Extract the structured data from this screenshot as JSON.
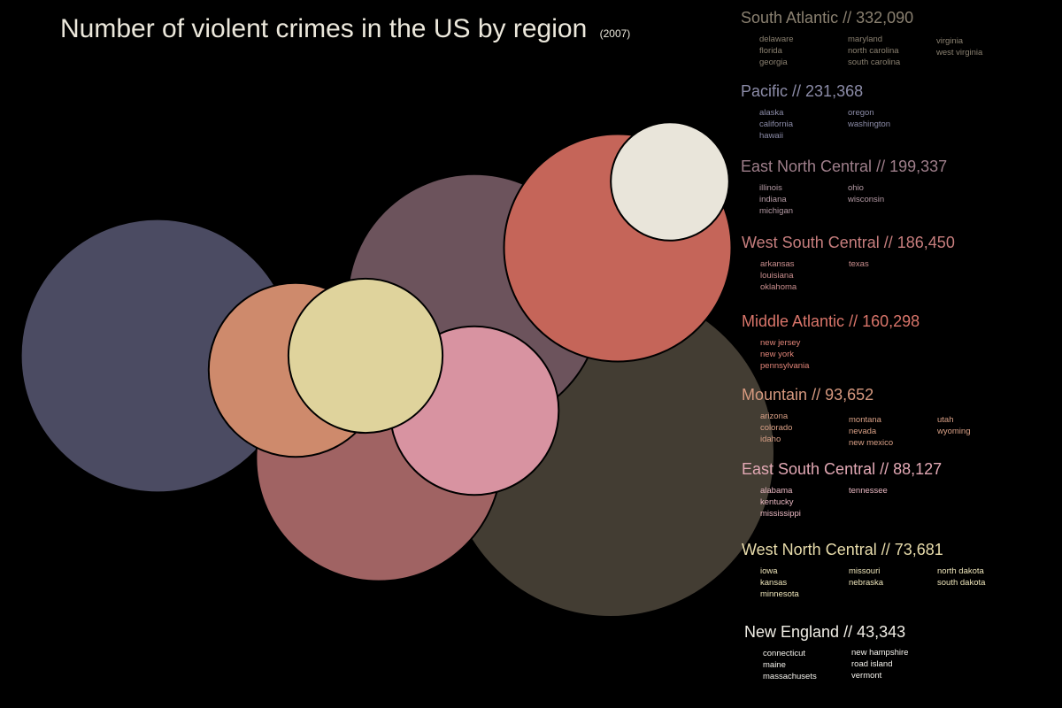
{
  "chart_data": {
    "type": "bubble",
    "title": "Number of violent crimes in the US by region",
    "subtitle": "(2007)",
    "separator": "//",
    "series": [
      {
        "name": "South Atlantic",
        "value": 332090,
        "value_label": "332,090",
        "color": "#433d33",
        "states": [
          "delaware",
          "florida",
          "georgia",
          "maryland",
          "north carolina",
          "south carolina",
          "virginia",
          "west virginia"
        ]
      },
      {
        "name": "Pacific",
        "value": 231368,
        "value_label": "231,368",
        "color": "#4b4b62",
        "states": [
          "alaska",
          "california",
          "hawaii",
          "oregon",
          "washington"
        ]
      },
      {
        "name": "East North Central",
        "value": 199337,
        "value_label": "199,337",
        "color": "#6c535c",
        "states": [
          "illinois",
          "indiana",
          "michigan",
          "ohio",
          "wisconsin"
        ]
      },
      {
        "name": "West South Central",
        "value": 186450,
        "value_label": "186,450",
        "color": "#a06363",
        "states": [
          "arkansas",
          "louisiana",
          "oklahoma",
          "texas"
        ]
      },
      {
        "name": "Middle Atlantic",
        "value": 160298,
        "value_label": "160,298",
        "color": "#c56559",
        "states": [
          "new jersey",
          "new york",
          "pennsylvania"
        ]
      },
      {
        "name": "Mountain",
        "value": 93652,
        "value_label": "93,652",
        "color": "#ce8a6c",
        "states": [
          "arizona",
          "colorado",
          "idaho",
          "montana",
          "nevada",
          "new mexico",
          "utah",
          "wyoming"
        ]
      },
      {
        "name": "East South Central",
        "value": 88127,
        "value_label": "88,127",
        "color": "#d893a1",
        "states": [
          "alabama",
          "kentucky",
          "mississippi",
          "tennessee"
        ]
      },
      {
        "name": "West North Central",
        "value": 73681,
        "value_label": "73,681",
        "color": "#dfd39c",
        "states": [
          "iowa",
          "kansas",
          "minnesota",
          "missouri",
          "nebraska",
          "north dakota",
          "south dakota"
        ]
      },
      {
        "name": "New England",
        "value": 43343,
        "value_label": "43,343",
        "color": "#e9e5da",
        "states": [
          "connecticut",
          "maine",
          "massachusets",
          "new hampshire",
          "road island",
          "vermont"
        ]
      }
    ]
  }
}
